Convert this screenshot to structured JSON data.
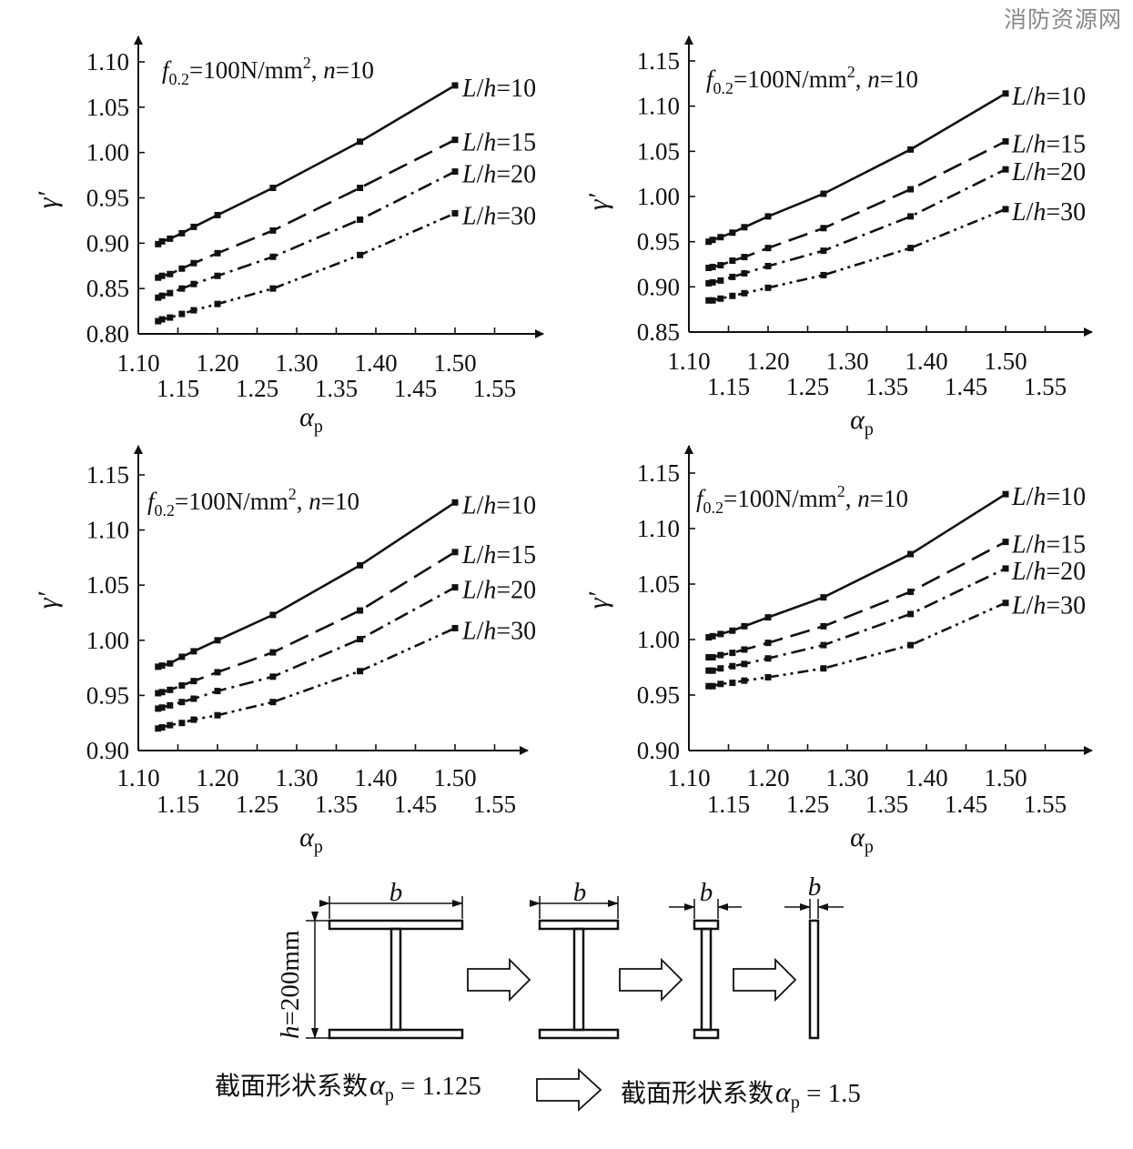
{
  "watermark": "消防资源网",
  "charts": [
    {
      "annotation": {
        "base": "f",
        "sub": "0.2",
        "mid": "=100N/mm",
        "sup": "2",
        "tail": ", ",
        "n": "n",
        "neq": "=10"
      },
      "ylabel": "γ′",
      "xlabel": "α",
      "xlabel_sub": "p",
      "xlim": [
        1.1,
        1.6
      ],
      "ylim": [
        0.8,
        1.1
      ],
      "yticks": [
        "0.80",
        "0.85",
        "0.90",
        "0.95",
        "1.00",
        "1.05",
        "1.10"
      ],
      "xticks_upper": [
        "1.10",
        "1.20",
        "1.30",
        "1.40",
        "1.50"
      ],
      "xticks_lower": [
        "1.15",
        "1.25",
        "1.35",
        "1.45",
        "1.55"
      ],
      "x": [
        1.125,
        1.13,
        1.14,
        1.155,
        1.17,
        1.2,
        1.27,
        1.38,
        1.5
      ],
      "series": [
        {
          "name": "L/h=10",
          "dash": "",
          "values": [
            0.899,
            0.902,
            0.905,
            0.911,
            0.918,
            0.931,
            0.961,
            1.012,
            1.074
          ]
        },
        {
          "name": "L/h=15",
          "dash": "22 9",
          "values": [
            0.862,
            0.864,
            0.866,
            0.872,
            0.878,
            0.889,
            0.914,
            0.961,
            1.014
          ]
        },
        {
          "name": "L/h=20",
          "dash": "16 6 3 6",
          "values": [
            0.84,
            0.842,
            0.845,
            0.85,
            0.855,
            0.864,
            0.885,
            0.926,
            0.979
          ]
        },
        {
          "name": "L/h=30",
          "dash": "12 5 3 5 3 5",
          "values": [
            0.814,
            0.816,
            0.818,
            0.822,
            0.826,
            0.833,
            0.85,
            0.887,
            0.933
          ]
        }
      ]
    },
    {
      "annotation": {
        "base": "f",
        "sub": "0.2",
        "mid": "=100N/mm",
        "sup": "2",
        "tail": ", ",
        "n": "n",
        "neq": "=10"
      },
      "ylabel": "γ′",
      "xlabel": "α",
      "xlabel_sub": "p",
      "xlim": [
        1.1,
        1.6
      ],
      "ylim": [
        0.85,
        1.15
      ],
      "yticks": [
        "0.85",
        "0.90",
        "0.95",
        "1.00",
        "1.05",
        "1.10",
        "1.15"
      ],
      "xticks_upper": [
        "1.10",
        "1.20",
        "1.30",
        "1.40",
        "1.50"
      ],
      "xticks_lower": [
        "1.15",
        "1.25",
        "1.35",
        "1.45",
        "1.55"
      ],
      "x": [
        1.125,
        1.13,
        1.14,
        1.155,
        1.17,
        1.2,
        1.27,
        1.38,
        1.5
      ],
      "series": [
        {
          "name": "L/h=10",
          "dash": "",
          "values": [
            0.95,
            0.952,
            0.955,
            0.96,
            0.966,
            0.978,
            1.003,
            1.052,
            1.114
          ]
        },
        {
          "name": "L/h=15",
          "dash": "22 9",
          "values": [
            0.921,
            0.922,
            0.924,
            0.929,
            0.933,
            0.943,
            0.965,
            1.008,
            1.061
          ]
        },
        {
          "name": "L/h=20",
          "dash": "16 6 3 6",
          "values": [
            0.904,
            0.905,
            0.907,
            0.911,
            0.915,
            0.923,
            0.94,
            0.978,
            1.03
          ]
        },
        {
          "name": "L/h=30",
          "dash": "12 5 3 5 3 5",
          "values": [
            0.885,
            0.885,
            0.887,
            0.89,
            0.893,
            0.899,
            0.913,
            0.943,
            0.986
          ]
        }
      ]
    },
    {
      "annotation": {
        "base": "f",
        "sub": "0.2",
        "mid": "=100N/mm",
        "sup": "2",
        "tail": ", ",
        "n": "n",
        "neq": "=10"
      },
      "ylabel": "γ′",
      "xlabel": "α",
      "xlabel_sub": "p",
      "xlim": [
        1.1,
        1.6
      ],
      "ylim": [
        0.9,
        1.15
      ],
      "yticks": [
        "0.90",
        "0.95",
        "1.00",
        "1.05",
        "1.10",
        "1.15"
      ],
      "xticks_upper": [
        "1.10",
        "1.20",
        "1.30",
        "1.40",
        "1.50"
      ],
      "xticks_lower": [
        "1.15",
        "1.25",
        "1.35",
        "1.45",
        "1.55"
      ],
      "x": [
        1.125,
        1.13,
        1.14,
        1.155,
        1.17,
        1.2,
        1.27,
        1.38,
        1.5
      ],
      "series": [
        {
          "name": "L/h=10",
          "dash": "",
          "values": [
            0.976,
            0.977,
            0.979,
            0.985,
            0.99,
            1.0,
            1.023,
            1.068,
            1.125
          ]
        },
        {
          "name": "L/h=15",
          "dash": "22 9",
          "values": [
            0.952,
            0.953,
            0.955,
            0.959,
            0.963,
            0.971,
            0.989,
            1.027,
            1.08
          ]
        },
        {
          "name": "L/h=20",
          "dash": "16 6 3 6",
          "values": [
            0.938,
            0.939,
            0.941,
            0.944,
            0.947,
            0.954,
            0.967,
            1.001,
            1.048
          ]
        },
        {
          "name": "L/h=30",
          "dash": "12 5 3 5 3 5",
          "values": [
            0.92,
            0.921,
            0.923,
            0.925,
            0.928,
            0.932,
            0.944,
            0.972,
            1.011
          ]
        }
      ]
    },
    {
      "annotation": {
        "base": "f",
        "sub": "0.2",
        "mid": "=100N/mm",
        "sup": "2",
        "tail": ", ",
        "n": "n",
        "neq": "=10"
      },
      "ylabel": "γ′",
      "xlabel": "α",
      "xlabel_sub": "p",
      "xlim": [
        1.1,
        1.6
      ],
      "ylim": [
        0.9,
        1.15
      ],
      "yticks": [
        "0.90",
        "0.95",
        "1.00",
        "1.05",
        "1.10",
        "1.15"
      ],
      "xticks_upper": [
        "1.10",
        "1.20",
        "1.30",
        "1.40",
        "1.50"
      ],
      "xticks_lower": [
        "1.15",
        "1.25",
        "1.35",
        "1.45",
        "1.55"
      ],
      "x": [
        1.125,
        1.13,
        1.14,
        1.155,
        1.17,
        1.2,
        1.27,
        1.38,
        1.5
      ],
      "series": [
        {
          "name": "L/h=10",
          "dash": "",
          "values": [
            1.002,
            1.003,
            1.005,
            1.008,
            1.012,
            1.02,
            1.038,
            1.077,
            1.131
          ]
        },
        {
          "name": "L/h=15",
          "dash": "22 9",
          "values": [
            0.984,
            0.984,
            0.986,
            0.988,
            0.991,
            0.997,
            1.012,
            1.043,
            1.088
          ]
        },
        {
          "name": "L/h=20",
          "dash": "16 6 3 6",
          "values": [
            0.972,
            0.972,
            0.974,
            0.976,
            0.978,
            0.983,
            0.995,
            1.023,
            1.064
          ]
        },
        {
          "name": "L/h=30",
          "dash": "12 5 3 5 3 5",
          "values": [
            0.958,
            0.958,
            0.96,
            0.961,
            0.963,
            0.966,
            0.974,
            0.995,
            1.033
          ]
        }
      ]
    }
  ],
  "diagram": {
    "b": "b",
    "h_label_italic": "h",
    "h_label_rest": "=200mm",
    "caption_left_cn": "截面形状系数",
    "caption_alpha": "α",
    "caption_sub": "p",
    "caption_left_val": " = 1.125",
    "caption_right_cn": "截面形状系数",
    "caption_right_val": " = 1.5"
  }
}
